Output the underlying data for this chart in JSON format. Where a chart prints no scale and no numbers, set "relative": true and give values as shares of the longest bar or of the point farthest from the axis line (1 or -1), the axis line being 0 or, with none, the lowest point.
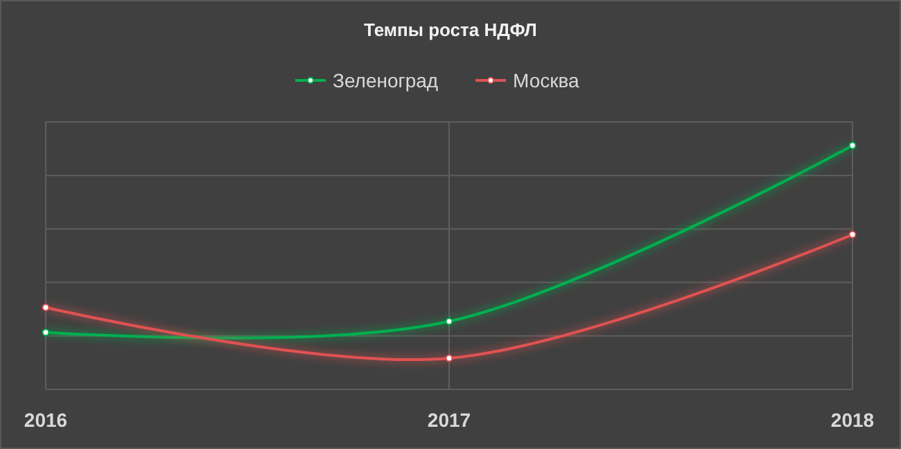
{
  "chart_data": {
    "type": "line",
    "title": "Темпы роста НДФЛ",
    "relative": true,
    "categories": [
      "2016",
      "2017",
      "2018"
    ],
    "series": [
      {
        "name": "Зеленоград",
        "color": "#00b050",
        "values": [
          0.234,
          0.279,
          1
        ]
      },
      {
        "name": "Москва",
        "color": "#e05252",
        "values": [
          0.336,
          0.128,
          0.635
        ]
      }
    ],
    "grid": true,
    "legend": "top",
    "marker": "circle",
    "line_style": "solid"
  }
}
